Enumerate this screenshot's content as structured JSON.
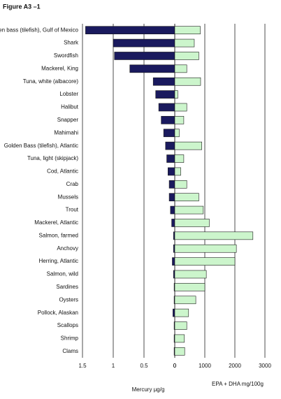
{
  "chart_data": {
    "type": "butterfly",
    "title": "Figure A3 –1",
    "categories": [
      "Golden bass (tilefish), Gulf of Mexico",
      "Shark",
      "Swordfish",
      "Mackerel, King",
      "Tuna, white (albacore)",
      "Lobster",
      "Halibut",
      "Snapper",
      "Mahimahi",
      "Golden Bass (tilefish), Atlantic",
      "Tuna, light (skipjack)",
      "Cod, Atlantic",
      "Crab",
      "Mussels",
      "Trout",
      "Mackerel, Atlantic",
      "Salmon, farmed",
      "Anchovy",
      "Herring, Atlantic",
      "Salmon, wild",
      "Sardines",
      "Oysters",
      "Pollock, Alaskan",
      "Scallops",
      "Shrimp",
      "Clams"
    ],
    "series": [
      {
        "axis": "x",
        "color": "#1a1a5e",
        "values": [
          1.45,
          1.0,
          0.98,
          0.73,
          0.35,
          0.31,
          0.26,
          0.22,
          0.18,
          0.15,
          0.13,
          0.11,
          0.09,
          0.09,
          0.07,
          0.05,
          0.02,
          0.02,
          0.04,
          0.02,
          0.01,
          0.01,
          0.03,
          0.01,
          0.01,
          0.01
        ]
      },
      {
        "axis": "x2",
        "color": "#ccf5cc",
        "values": [
          850,
          650,
          800,
          400,
          860,
          100,
          400,
          300,
          150,
          900,
          300,
          200,
          400,
          800,
          950,
          1150,
          2600,
          2050,
          2000,
          1050,
          1000,
          700,
          460,
          400,
          320,
          330
        ]
      }
    ],
    "xlim": [
      1.5,
      0
    ],
    "xticks": [
      1.5,
      1,
      0.5,
      0
    ],
    "xlabel": "Mercury µg/g",
    "x2lim": [
      0,
      3000
    ],
    "x2ticks": [
      0,
      1000,
      2000,
      3000
    ],
    "x2label": "EPA + DHA mg/100g",
    "grid": true
  }
}
